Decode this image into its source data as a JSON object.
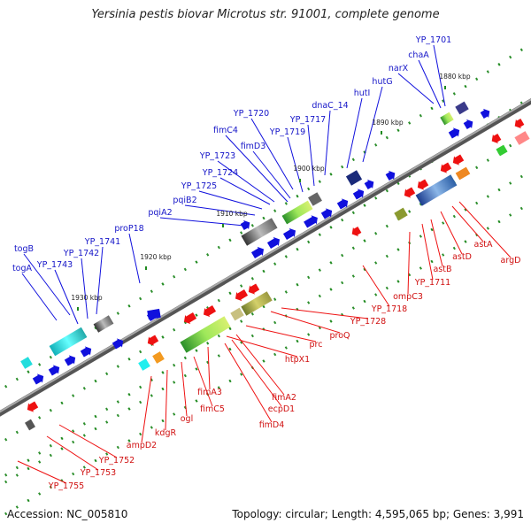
{
  "title": "Yersinia pestis biovar Microtus str. 91001, complete genome",
  "footer": {
    "accession": "Accession: NC_005810",
    "summary": "Topology: circular; Length: 4,595,065 bp; Genes: 3,991"
  },
  "ticks": [
    "1880 kbp",
    "1890 kbp",
    "1900 kbp",
    "1910 kbp",
    "1920 kbp",
    "1930 kbp"
  ],
  "forward_labels": [
    "YP_1701",
    "chaA",
    "narX",
    "hutG",
    "hutI",
    "dnaC_14",
    "YP_1717",
    "YP_1720",
    "YP_1719",
    "fimC4",
    "fimD3",
    "YP_1723",
    "YP_1724",
    "YP_1725",
    "pqiB2",
    "pqiA2",
    "proP18",
    "YP_1741",
    "togB",
    "YP_1742",
    "togA",
    "YP_1743"
  ],
  "reverse_labels": [
    "argD",
    "astA",
    "astD",
    "astB",
    "YP_1711",
    "ompC3",
    "YP_1718",
    "YP_1728",
    "proQ",
    "prc",
    "htpX1",
    "fimA2",
    "fimA3",
    "ecpD1",
    "fimD4",
    "fimC5",
    "ogl",
    "kdgR",
    "ampD2",
    "YP_1752",
    "YP_1753",
    "YP_1755"
  ],
  "colors": {
    "forward": "#1010dd",
    "reverse": "#ee1111",
    "forward_label": "#1515c8",
    "reverse_label": "#d01010",
    "backbone": "#888888"
  }
}
